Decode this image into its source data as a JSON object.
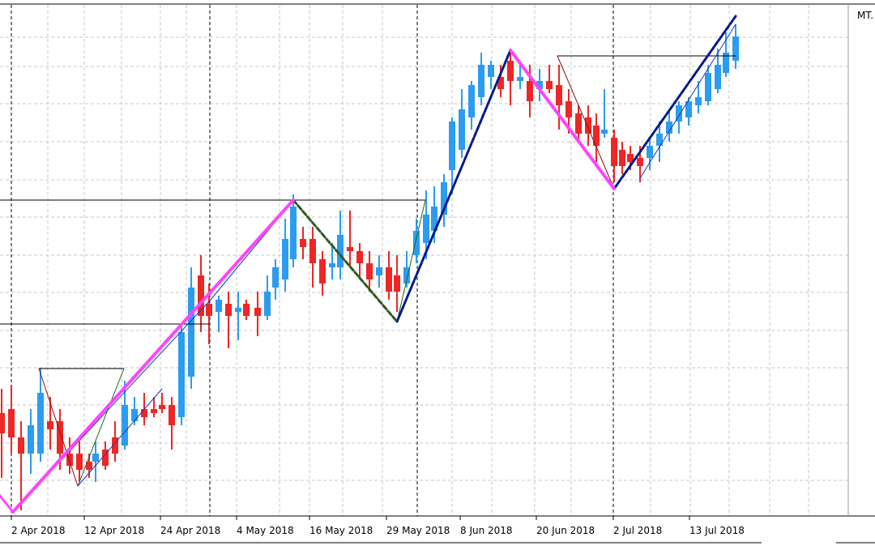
{
  "window": {
    "corner_label": "MT."
  },
  "colors": {
    "bull": "#2b9cf0",
    "bear": "#ee2626",
    "grid": "#c7c7c7",
    "zigzag_major": "#ff44ff",
    "zigzag_up": "#001a8a",
    "zigzag_down": "#2f5a1e",
    "channel_lines": "#000000"
  },
  "chart_data": {
    "type": "candlestick",
    "title": "",
    "xlabel": "",
    "ylabel": "",
    "grid": true,
    "x_tick_labels": [
      "2 Apr 2018",
      "12 Apr 2018",
      "24 Apr 2018",
      "4 May 2018",
      "16 May 2018",
      "29 May 2018",
      "8 Jun 2018",
      "20 Jun 2018",
      "2 Jul 2018",
      "13 Jul 2018"
    ]
  }
}
